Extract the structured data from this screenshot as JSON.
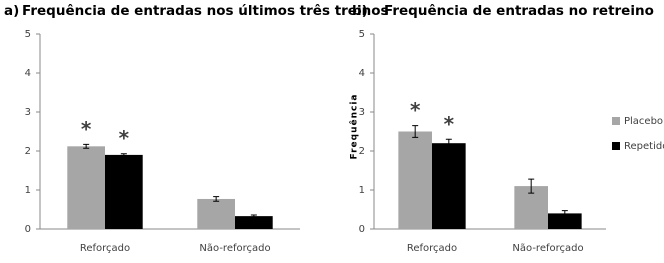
{
  "chart_data": [
    {
      "type": "bar",
      "panel": "a)",
      "title": "Frequência de entradas nos últimos três treinos",
      "categories": [
        "Reforçado",
        "Não-reforçado"
      ],
      "series": [
        {
          "name": "Placebo",
          "color": "#a6a6a6",
          "values": [
            2.12,
            0.77
          ],
          "errors": [
            0.05,
            0.06
          ]
        },
        {
          "name": "Repetido",
          "color": "#000000",
          "values": [
            1.9,
            0.33
          ],
          "errors": [
            0.03,
            0.03
          ]
        }
      ],
      "annotations": [
        "*",
        "*"
      ],
      "annotation_color": "#e00000",
      "ylim": [
        0,
        5
      ],
      "yticks": [
        0,
        1,
        2,
        3,
        4,
        5
      ]
    },
    {
      "type": "bar",
      "panel": "b)",
      "title": "Frequência de entradas no retreino",
      "ylabel": "Frequência",
      "categories": [
        "Reforçado",
        "Não-reforçado"
      ],
      "series": [
        {
          "name": "Placebo",
          "color": "#a6a6a6",
          "values": [
            2.5,
            1.1
          ],
          "errors": [
            0.15,
            0.18
          ]
        },
        {
          "name": "Repetido",
          "color": "#000000",
          "values": [
            2.2,
            0.4
          ],
          "errors": [
            0.1,
            0.07
          ]
        }
      ],
      "annotations": [
        "*",
        "*"
      ],
      "annotation_color": "#000000",
      "ylim": [
        0,
        5
      ],
      "yticks": [
        0,
        1,
        2,
        3,
        4,
        5
      ],
      "legend": "right"
    }
  ]
}
